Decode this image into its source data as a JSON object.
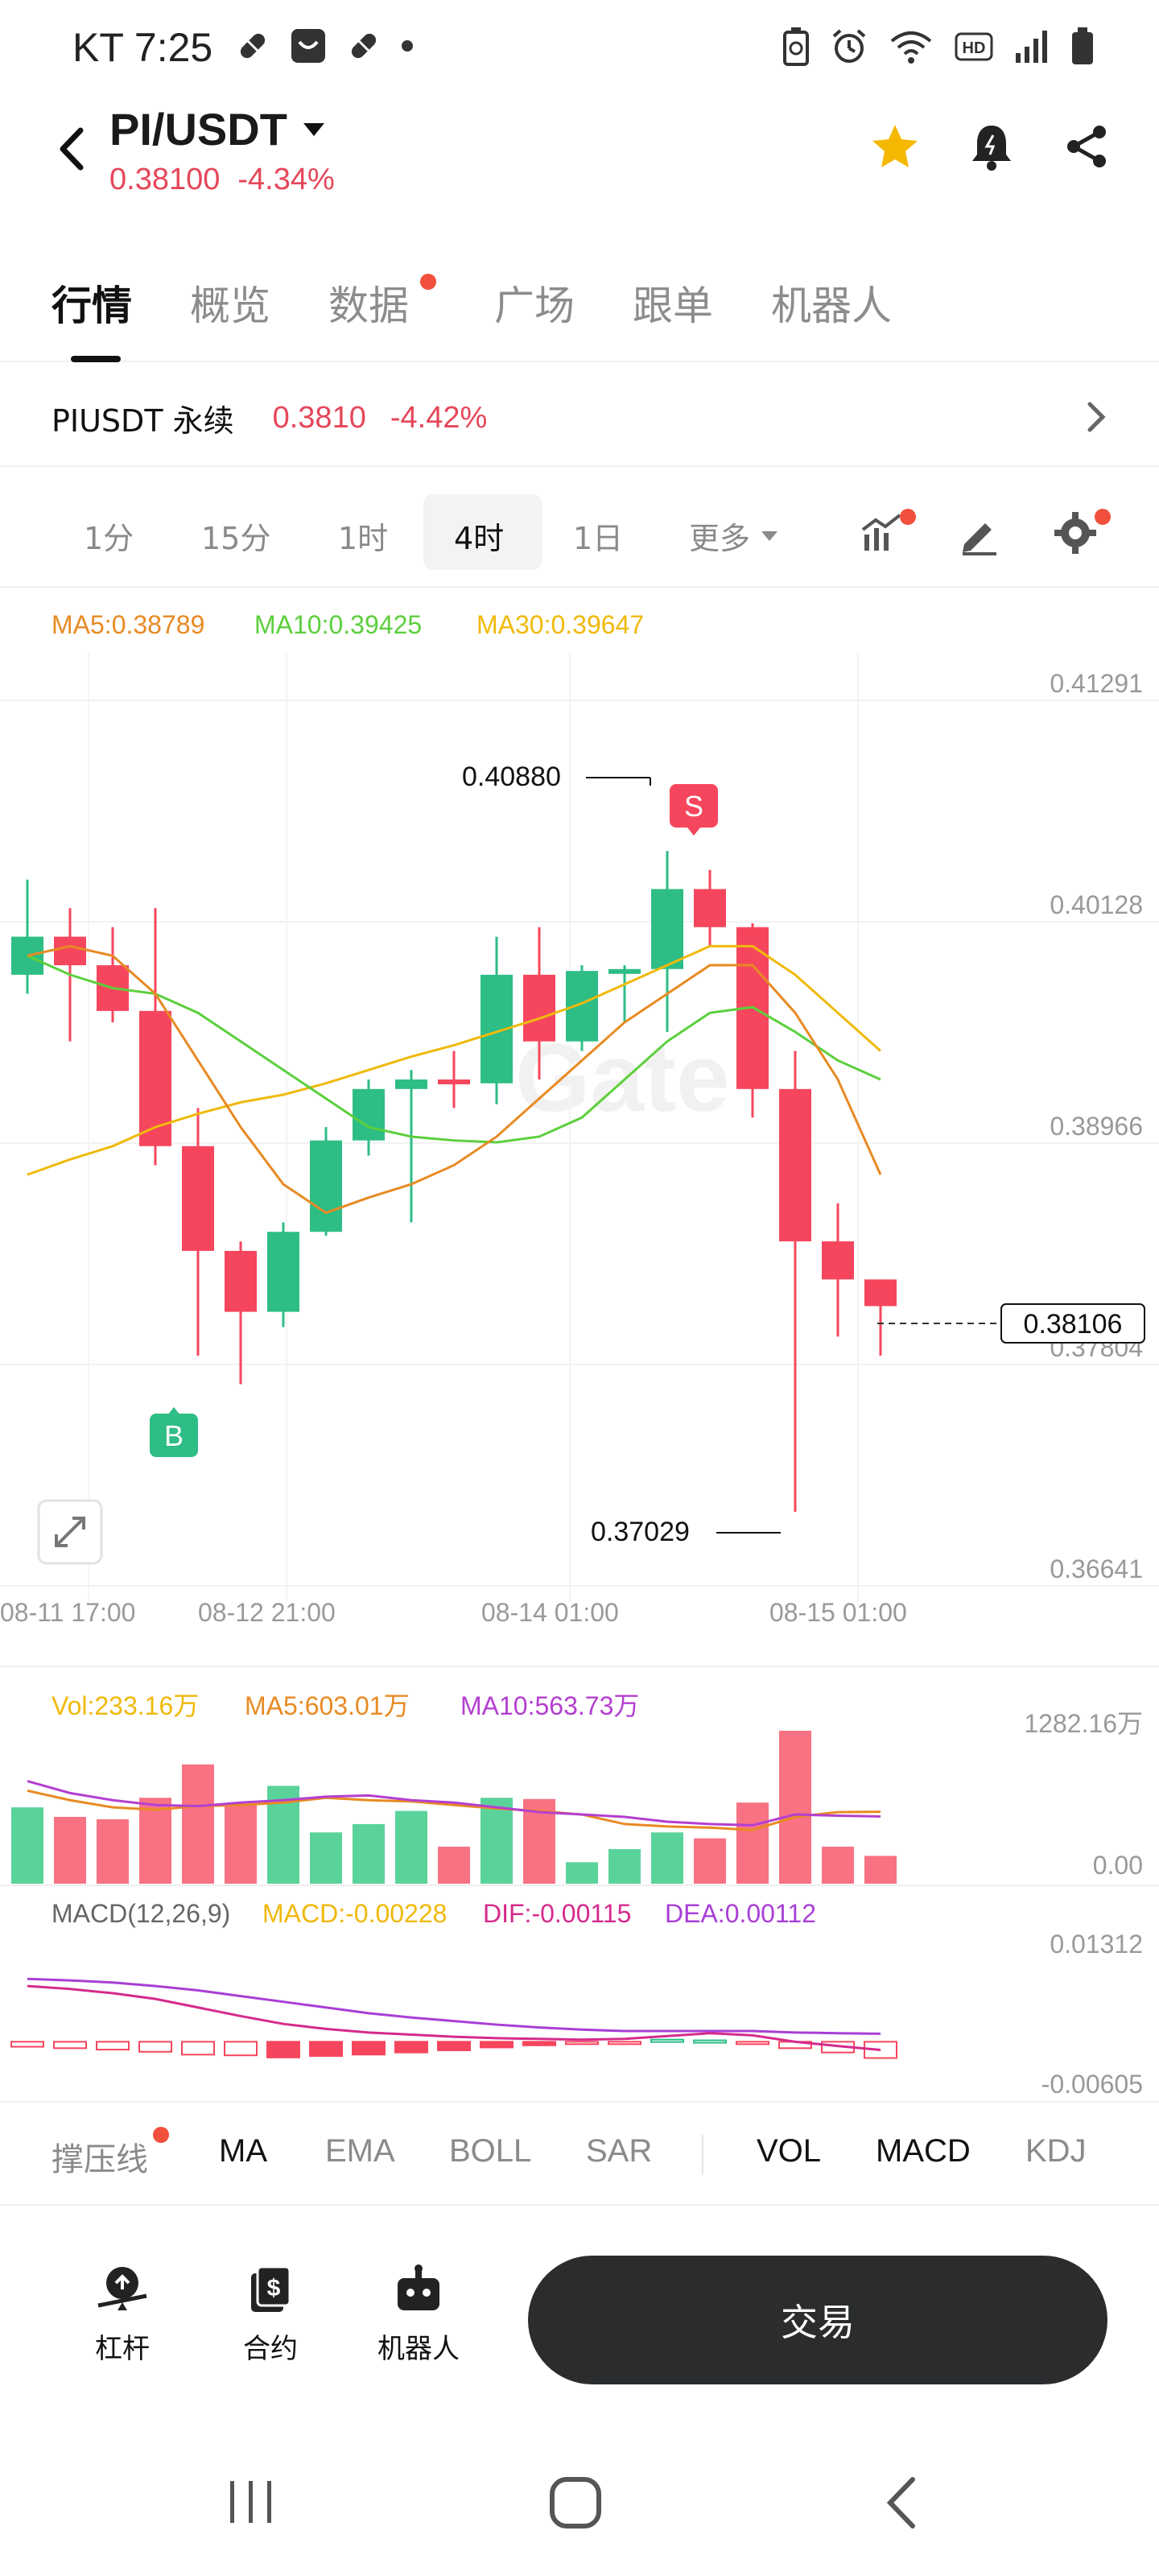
{
  "status_bar": {
    "time": "KT 7:25",
    "left_icons": [
      "pill-icon",
      "shopping-bag-icon",
      "pill-icon",
      "dot-icon"
    ],
    "right_icons": [
      "battery-saver-icon",
      "alarm-icon",
      "wifi-icon",
      "hd-icon",
      "signal-icon",
      "battery-icon"
    ]
  },
  "header": {
    "pair": "PI/USDT",
    "price": "0.38100",
    "change": "-4.34%",
    "icons": [
      "star-icon",
      "bell-icon",
      "share-icon"
    ]
  },
  "tabs": [
    {
      "label": "行情",
      "active": true
    },
    {
      "label": "概览"
    },
    {
      "label": "数据",
      "dot": true
    },
    {
      "label": "广场"
    },
    {
      "label": "跟单"
    },
    {
      "label": "机器人"
    }
  ],
  "perpetual": {
    "name": "PIUSDT 永续",
    "price": "0.3810",
    "change": "-4.42%"
  },
  "intervals": {
    "items": [
      "1分",
      "15分",
      "1时",
      "4时",
      "1日",
      "更多"
    ],
    "active": "4时"
  },
  "chart_legend": {
    "ma5": "MA5:0.38789",
    "ma10": "MA10:0.39425",
    "ma30": "MA30:0.39647"
  },
  "annotations": {
    "high": "0.40880",
    "low": "0.37029",
    "current": "0.38106",
    "sell_marker": "S",
    "buy_marker": "B",
    "watermark": "Gate"
  },
  "volume_legend": {
    "vol": "Vol:233.16万",
    "ma5": "MA5:603.01万",
    "ma10": "MA10:563.73万",
    "max": "1282.16万",
    "min": "0.00"
  },
  "macd_legend": {
    "title": "MACD(12,26,9)",
    "macd": "MACD:-0.00228",
    "dif": "DIF:-0.00115",
    "dea": "DEA:0.00112",
    "max": "0.01312",
    "min": "-0.00605"
  },
  "indicator_tabs": [
    {
      "label": "撑压线",
      "dot": true
    },
    {
      "label": "MA",
      "on": true
    },
    {
      "label": "EMA"
    },
    {
      "label": "BOLL"
    },
    {
      "label": "SAR"
    },
    {
      "label": "VOL",
      "on": true
    },
    {
      "label": "MACD",
      "on": true
    },
    {
      "label": "KDJ"
    }
  ],
  "bottom_bar": {
    "leverage": "杠杆",
    "contract": "合约",
    "robot": "机器人",
    "trade": "交易"
  },
  "colors": {
    "up": "#2ebd85",
    "down": "#f6465d",
    "ma5": "#e88a23",
    "ma10": "#5ccf3d",
    "ma30": "#f0b90b",
    "vol_ma10": "#b43fd0",
    "macd_dif": "#d52b8c",
    "macd_dea": "#a83fd6"
  },
  "chart_data": [
    {
      "type": "candlestick",
      "title": "",
      "y_ticks": [
        "0.41291",
        "0.40128",
        "0.38966",
        "0.37804",
        "0.36641"
      ],
      "x_ticks": [
        "08-11 17:00",
        "08-12 21:00",
        "08-14 01:00",
        "08-15 01:00"
      ],
      "ylim": [
        0.36641,
        0.41291
      ],
      "candles": [
        {
          "o": 0.3985,
          "h": 0.4035,
          "l": 0.3975,
          "c": 0.4005
        },
        {
          "o": 0.4005,
          "h": 0.402,
          "l": 0.395,
          "c": 0.399
        },
        {
          "o": 0.399,
          "h": 0.401,
          "l": 0.396,
          "c": 0.3966
        },
        {
          "o": 0.3966,
          "h": 0.402,
          "l": 0.3885,
          "c": 0.3895
        },
        {
          "o": 0.3895,
          "h": 0.3915,
          "l": 0.3785,
          "c": 0.384
        },
        {
          "o": 0.384,
          "h": 0.3845,
          "l": 0.377,
          "c": 0.3808
        },
        {
          "o": 0.3808,
          "h": 0.3855,
          "l": 0.38,
          "c": 0.385
        },
        {
          "o": 0.385,
          "h": 0.3905,
          "l": 0.3848,
          "c": 0.3898
        },
        {
          "o": 0.3898,
          "h": 0.393,
          "l": 0.389,
          "c": 0.3925
        },
        {
          "o": 0.3925,
          "h": 0.3935,
          "l": 0.3855,
          "c": 0.393
        },
        {
          "o": 0.393,
          "h": 0.3945,
          "l": 0.3915,
          "c": 0.3928
        },
        {
          "o": 0.3928,
          "h": 0.4005,
          "l": 0.3917,
          "c": 0.3985
        },
        {
          "o": 0.3985,
          "h": 0.401,
          "l": 0.393,
          "c": 0.395
        },
        {
          "o": 0.395,
          "h": 0.399,
          "l": 0.3945,
          "c": 0.3987
        },
        {
          "o": 0.3987,
          "h": 0.399,
          "l": 0.396,
          "c": 0.3988
        },
        {
          "o": 0.3988,
          "h": 0.405,
          "l": 0.3955,
          "c": 0.403
        },
        {
          "o": 0.403,
          "h": 0.404,
          "l": 0.4,
          "c": 0.401
        },
        {
          "o": 0.401,
          "h": 0.4012,
          "l": 0.391,
          "c": 0.3925
        },
        {
          "o": 0.3925,
          "h": 0.3945,
          "l": 0.3703,
          "c": 0.3845
        },
        {
          "o": 0.3845,
          "h": 0.3865,
          "l": 0.3795,
          "c": 0.3825
        },
        {
          "o": 0.3825,
          "h": 0.3825,
          "l": 0.3785,
          "c": 0.3811
        }
      ],
      "ma5": [
        0.3995,
        0.4,
        0.3995,
        0.3975,
        0.394,
        0.3905,
        0.3875,
        0.386,
        0.3868,
        0.3875,
        0.3885,
        0.39,
        0.392,
        0.394,
        0.396,
        0.3975,
        0.399,
        0.399,
        0.3965,
        0.393,
        0.388
      ],
      "ma10": [
        0.3995,
        0.3985,
        0.3978,
        0.3975,
        0.3965,
        0.395,
        0.3935,
        0.392,
        0.3905,
        0.39,
        0.3898,
        0.3897,
        0.39,
        0.391,
        0.393,
        0.395,
        0.3965,
        0.3968,
        0.3955,
        0.394,
        0.393
      ],
      "ma30": [
        0.388,
        0.3888,
        0.3895,
        0.3905,
        0.3912,
        0.3918,
        0.3922,
        0.3928,
        0.3935,
        0.3942,
        0.3948,
        0.3955,
        0.3962,
        0.397,
        0.398,
        0.399,
        0.4,
        0.4,
        0.3985,
        0.3965,
        0.3945
      ]
    },
    {
      "type": "bar",
      "title": "Vol",
      "ylim": [
        0,
        1282.16
      ],
      "values": [
        640,
        560,
        540,
        720,
        1000,
        670,
        820,
        430,
        500,
        610,
        310,
        720,
        710,
        180,
        290,
        430,
        380,
        680,
        1282.16,
        310,
        233.16
      ],
      "up": [
        true,
        false,
        false,
        false,
        false,
        false,
        true,
        true,
        true,
        true,
        false,
        true,
        false,
        true,
        true,
        true,
        false,
        false,
        false,
        false,
        false
      ],
      "ma5": [
        780,
        700,
        640,
        620,
        650,
        660,
        680,
        720,
        700,
        690,
        660,
        630,
        610,
        580,
        500,
        480,
        470,
        450,
        560,
        600,
        603.01
      ],
      "ma10": [
        860,
        760,
        700,
        660,
        650,
        680,
        700,
        730,
        740,
        700,
        680,
        640,
        600,
        580,
        560,
        520,
        500,
        490,
        580,
        570,
        563.73
      ]
    },
    {
      "type": "bar",
      "title": "MACD(12,26,9)",
      "ylim": [
        -0.00605,
        0.01312
      ],
      "histogram": [
        -0.0007,
        -0.0009,
        -0.0011,
        -0.0014,
        -0.0018,
        -0.0019,
        -0.0022,
        -0.002,
        -0.0018,
        -0.0015,
        -0.0012,
        -0.0008,
        -0.0005,
        -0.0003,
        -0.0002,
        0.0003,
        0.0002,
        -0.0002,
        -0.0009,
        -0.0015,
        -0.00228
      ],
      "dif": [
        0.0078,
        0.0074,
        0.0068,
        0.006,
        0.0048,
        0.0036,
        0.0025,
        0.0018,
        0.0013,
        0.001,
        0.0007,
        0.0005,
        0.0004,
        0.0003,
        0.0004,
        0.0008,
        0.0012,
        0.0009,
        0.0,
        -0.0006,
        -0.00115
      ],
      "dea": [
        0.0088,
        0.0086,
        0.0083,
        0.0078,
        0.0072,
        0.0064,
        0.0056,
        0.0048,
        0.004,
        0.0034,
        0.0029,
        0.0024,
        0.002,
        0.0017,
        0.0015,
        0.0015,
        0.0015,
        0.0015,
        0.0013,
        0.0012,
        0.00112
      ]
    }
  ]
}
